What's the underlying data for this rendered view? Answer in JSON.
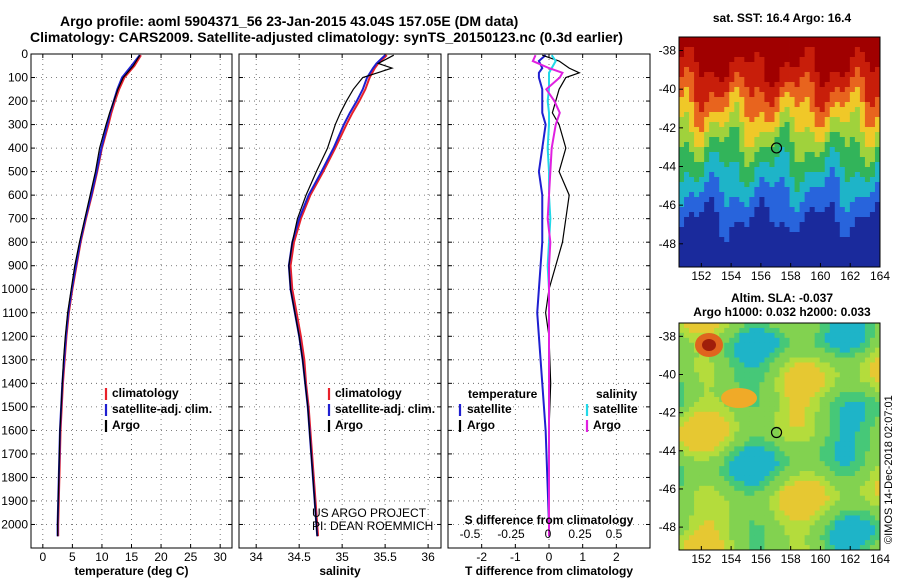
{
  "header": {
    "line1": "Argo profile: aoml 5904371_56 23-Jan-2015 43.04S 157.05E (DM data)",
    "line2": "Climatology: CARS2009. Satellite-adjusted climatology: synTS_20150123.nc (0.3d earlier)"
  },
  "side": {
    "sst_title": "sat. SST: 16.4 Argo: 16.4",
    "sla_title1": "Altim. SLA: -0.037",
    "sla_title2": "Argo h1000: 0.032 h2000: 0.033",
    "credit": "©IMOS 14-Dec-2018 02:07:01",
    "sst_map": {
      "lat_ticks": [
        "-38",
        "-40",
        "-42",
        "-44",
        "-46",
        "-48"
      ],
      "lon_ticks": [
        "152",
        "154",
        "156",
        "158",
        "160",
        "162",
        "164"
      ],
      "marker": {
        "lon": 157.05,
        "lat": -43.04
      }
    },
    "sla_map": {
      "lat_ticks": [
        "-38",
        "-40",
        "-42",
        "-44",
        "-46",
        "-48"
      ],
      "lon_ticks": [
        "152",
        "154",
        "156",
        "158",
        "160",
        "162",
        "164"
      ],
      "marker": {
        "lon": 157.05,
        "lat": -43.04
      }
    }
  },
  "annotations": {
    "project": "US ARGO PROJECT",
    "pi": "PI: DEAN ROEMMICH"
  },
  "colors": {
    "climatology": "#e8202a",
    "satellite": "#1f1fd0",
    "argo": "#000000",
    "sal_satellite": "#22d8e8",
    "sal_climatology": "#e020e0"
  },
  "chart_data": [
    {
      "type": "line",
      "ylabel_side": "depth",
      "xlabel": "temperature (deg C)",
      "xlim": [
        -2,
        32
      ],
      "ylim": [
        2100,
        0
      ],
      "xticks": [
        0,
        5,
        10,
        15,
        20,
        25,
        30
      ],
      "yticks": [
        0,
        100,
        200,
        300,
        400,
        500,
        600,
        700,
        800,
        900,
        1000,
        1100,
        1200,
        1300,
        1400,
        1500,
        1600,
        1700,
        1800,
        1900,
        2000
      ],
      "grid": true,
      "legend": [
        "climatology",
        "satellite-adj. clim.",
        "Argo"
      ],
      "legend_position": "lower-right",
      "depth": [
        5,
        50,
        100,
        150,
        200,
        250,
        300,
        400,
        500,
        600,
        700,
        800,
        900,
        1000,
        1100,
        1200,
        1300,
        1400,
        1500,
        1600,
        1700,
        1800,
        1900,
        2000,
        2050
      ],
      "series": [
        {
          "name": "climatology",
          "values": [
            16.6,
            15.5,
            13.8,
            12.9,
            12.2,
            11.6,
            11.1,
            10.0,
            9.2,
            8.3,
            7.3,
            6.4,
            5.7,
            5.0,
            4.4,
            4.0,
            3.7,
            3.4,
            3.2,
            3.0,
            2.9,
            2.8,
            2.7,
            2.6,
            2.6
          ]
        },
        {
          "name": "satellite-adj. clim.",
          "values": [
            16.4,
            15.0,
            13.4,
            12.6,
            12.0,
            11.4,
            10.9,
            9.9,
            9.1,
            8.2,
            7.2,
            6.3,
            5.6,
            4.9,
            4.3,
            3.9,
            3.6,
            3.3,
            3.1,
            2.9,
            2.8,
            2.7,
            2.6,
            2.5,
            2.5
          ]
        },
        {
          "name": "Argo",
          "values": [
            16.4,
            15.3,
            13.6,
            12.7,
            12.0,
            11.3,
            10.7,
            9.6,
            8.9,
            8.0,
            7.1,
            6.2,
            5.4,
            4.8,
            4.2,
            3.8,
            3.5,
            3.3,
            3.1,
            2.9,
            2.8,
            2.7,
            2.6,
            2.5,
            2.5
          ]
        }
      ]
    },
    {
      "type": "line",
      "xlabel": "salinity",
      "xlim": [
        33.8,
        36.15
      ],
      "ylim": [
        2100,
        0
      ],
      "xticks": [
        34,
        34.5,
        35,
        35.5,
        36
      ],
      "yticks": [
        0,
        100,
        200,
        300,
        400,
        500,
        600,
        700,
        800,
        900,
        1000,
        1100,
        1200,
        1300,
        1400,
        1500,
        1600,
        1700,
        1800,
        1900,
        2000
      ],
      "grid": true,
      "legend": [
        "climatology",
        "satellite-adj. clim.",
        "Argo"
      ],
      "legend_position": "lower-right",
      "depth": [
        5,
        40,
        60,
        100,
        150,
        200,
        250,
        300,
        400,
        500,
        600,
        700,
        800,
        900,
        1000,
        1100,
        1200,
        1300,
        1400,
        1500,
        1600,
        1700,
        1800,
        1900,
        2000,
        2050
      ],
      "series": [
        {
          "name": "climatology",
          "values": [
            35.52,
            35.42,
            35.38,
            35.32,
            35.27,
            35.2,
            35.12,
            35.05,
            34.92,
            34.78,
            34.63,
            34.52,
            34.44,
            34.4,
            34.42,
            34.47,
            34.52,
            34.56,
            34.58,
            34.61,
            34.63,
            34.65,
            34.67,
            34.69,
            34.71,
            34.72
          ]
        },
        {
          "name": "satellite-adj. clim.",
          "values": [
            35.5,
            35.4,
            35.36,
            35.29,
            35.24,
            35.17,
            35.09,
            35.02,
            34.9,
            34.76,
            34.61,
            34.5,
            34.42,
            34.38,
            34.4,
            34.45,
            34.5,
            34.54,
            34.57,
            34.6,
            34.62,
            34.64,
            34.66,
            34.68,
            34.7,
            34.71
          ]
        },
        {
          "name": "Argo",
          "values": [
            35.6,
            35.42,
            35.58,
            35.24,
            35.13,
            35.05,
            34.98,
            34.92,
            34.83,
            34.7,
            34.58,
            34.48,
            34.42,
            34.38,
            34.4,
            34.45,
            34.5,
            34.54,
            34.57,
            34.6,
            34.62,
            34.64,
            34.66,
            34.68,
            34.7,
            34.71
          ]
        }
      ]
    },
    {
      "type": "line",
      "xlabel": "T difference from climatology",
      "xlabel_top": "S difference from climatology",
      "xlim": [
        -3,
        3
      ],
      "ylim": [
        2100,
        0
      ],
      "xticks": [
        -2,
        -1,
        0,
        1,
        2
      ],
      "xticks_top": [
        "-0.5",
        "-0.25",
        "0",
        "0.25",
        "0.5"
      ],
      "yticks": [
        0,
        100,
        200,
        300,
        400,
        500,
        600,
        700,
        800,
        900,
        1000,
        1100,
        1200,
        1300,
        1400,
        1500,
        1600,
        1700,
        1800,
        1900,
        2000
      ],
      "grid": true,
      "legend_left_title": "temperature",
      "legend_right_title": "salinity",
      "legend_left": [
        "satellite",
        "Argo"
      ],
      "legend_right": [
        "satellite",
        "Argo"
      ],
      "depth": [
        5,
        30,
        60,
        80,
        100,
        150,
        200,
        250,
        300,
        400,
        500,
        600,
        700,
        800,
        900,
        1000,
        1100,
        1200,
        1400,
        1600,
        1800,
        2000,
        2050
      ],
      "series": [
        {
          "name": "T satellite",
          "values": [
            -0.1,
            -0.3,
            -0.2,
            -0.3,
            -0.3,
            -0.2,
            -0.2,
            -0.2,
            -0.1,
            -0.2,
            -0.3,
            -0.2,
            -0.2,
            -0.2,
            -0.25,
            -0.3,
            -0.35,
            -0.3,
            -0.2,
            -0.1,
            -0.05,
            0,
            0
          ]
        },
        {
          "name": "T Argo",
          "values": [
            -0.2,
            0.3,
            0.6,
            0.9,
            0.5,
            0.3,
            0.2,
            0.1,
            0.3,
            0.5,
            0.3,
            0.6,
            0.5,
            0.4,
            0.2,
            0.0,
            -0.1,
            0.0,
            0.05,
            0.0,
            0.0,
            0.0,
            0.0
          ]
        },
        {
          "name": "S satellite",
          "values": [
            0.02,
            0.05,
            0.02,
            0.0,
            0.0,
            0.0,
            -0.01,
            0.0,
            0.0,
            -0.01,
            0.0,
            0.0,
            0.01,
            0.0,
            -0.01,
            0.0,
            0.0,
            0.0,
            0.0,
            0.0,
            0.0,
            0.0,
            0.0
          ]
        },
        {
          "name": "S Argo",
          "values": [
            -0.1,
            -0.12,
            0.0,
            0.1,
            0.08,
            -0.02,
            0.04,
            0.08,
            0.05,
            0.02,
            0.01,
            0.0,
            -0.01,
            0.01,
            0.0,
            0.0,
            0.0,
            0.0,
            0.0,
            0.0,
            0.0,
            0.0,
            0.0
          ]
        }
      ]
    }
  ]
}
